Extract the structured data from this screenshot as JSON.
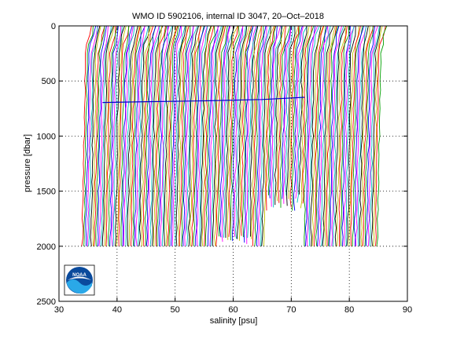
{
  "chart_data": {
    "type": "line",
    "title": "WMO ID 5902106, internal ID 3047, 20–Oct–2018",
    "xlabel": "salinity [psu]",
    "ylabel": "pressure [dbar]",
    "xlim": [
      30,
      90
    ],
    "ylim": [
      2500,
      0
    ],
    "y_reversed": true,
    "grid": true,
    "grid_style": "dotted",
    "x_ticks": [
      30,
      40,
      50,
      60,
      70,
      80,
      90
    ],
    "y_ticks": [
      0,
      500,
      1000,
      1500,
      2000,
      2500
    ],
    "profiles": {
      "description": "stacked offset salinity profiles, many cycles, spanning salinity ~34.5 to ~85.5",
      "first_offset_salinity": 34.6,
      "last_offset_salinity": 85.4,
      "count": 170,
      "max_pressure": 2000,
      "colors": [
        "#ff0000",
        "#00a000",
        "#0000ff",
        "#ff00ff",
        "#00c0c0",
        "#000000",
        "#c0c000"
      ]
    },
    "highlight_series": {
      "color": "#0000cc",
      "x": [
        37.5,
        45,
        55,
        65,
        72.3
      ],
      "y": [
        695,
        688,
        680,
        668,
        648
      ]
    },
    "logo": "noaa-logo"
  }
}
